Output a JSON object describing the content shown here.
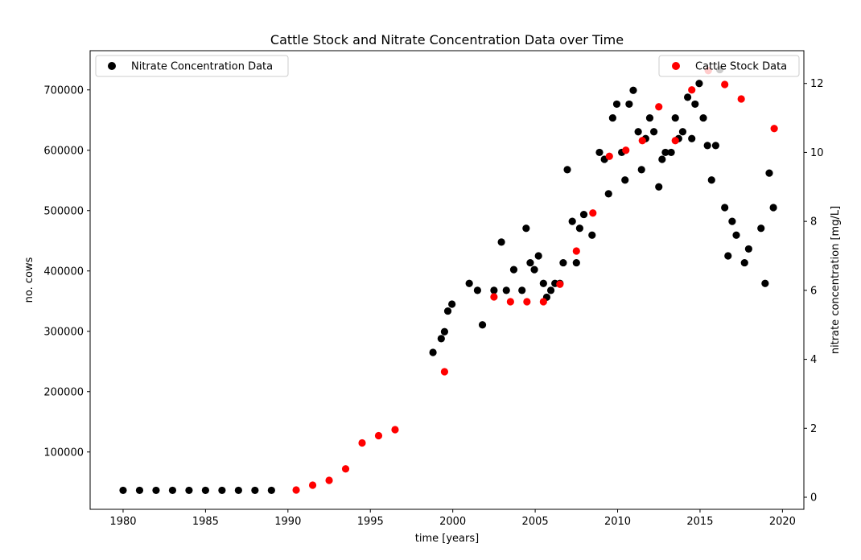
{
  "chart_data": {
    "type": "scatter",
    "title": "Cattle Stock and Nitrate Concentration Data over Time",
    "xlabel": "time [years]",
    "ylabel_left": "no. cows",
    "ylabel_right": "nitrate concentration [mg/L]",
    "xlim": [
      1978,
      2021.3
    ],
    "ylim_left": [
      5000,
      765000
    ],
    "ylim_right": [
      -0.35,
      12.95
    ],
    "x_ticks": [
      1980,
      1985,
      1990,
      1995,
      2000,
      2005,
      2010,
      2015,
      2020
    ],
    "y_left_ticks": [
      100000,
      200000,
      300000,
      400000,
      500000,
      600000,
      700000
    ],
    "y_right_ticks": [
      0,
      2,
      4,
      6,
      8,
      10,
      12
    ],
    "grid": false,
    "series": [
      {
        "name": "Cattle Stock Data",
        "color": "#ff0000",
        "axis": "left",
        "legend_position": "top-right",
        "x": [
          1990.5,
          1991.5,
          1992.5,
          1993.5,
          1994.5,
          1995.5,
          1996.5,
          1999.5,
          2002.5,
          2003.5,
          2004.5,
          2005.5,
          2006.5,
          2007.5,
          2008.5,
          2009.5,
          2010.5,
          2011.5,
          2012.5,
          2013.5,
          2014.5,
          2015.5,
          2016.5,
          2017.5,
          2019.5
        ],
        "y": [
          37000,
          45000,
          53000,
          72000,
          115000,
          127000,
          137000,
          233000,
          357000,
          349000,
          349000,
          349000,
          378000,
          433000,
          496000,
          590000,
          600000,
          616000,
          672000,
          616000,
          700000,
          732000,
          709000,
          685000,
          636000
        ]
      },
      {
        "name": "Nitrate Concentration Data",
        "color": "#000000",
        "axis": "right",
        "legend_position": "top-left",
        "x": [
          1980,
          1981,
          1982,
          1983,
          1984,
          1985,
          1986,
          1987,
          1988,
          1989,
          1998.8,
          1999.3,
          1999.5,
          1999.7,
          1999.95,
          2001,
          2001.5,
          2001.8,
          2002.5,
          2002.95,
          2003.25,
          2003.7,
          2004.2,
          2004.45,
          2004.7,
          2004.95,
          2005.2,
          2005.5,
          2005.7,
          2005.95,
          2006.2,
          2006.5,
          2006.7,
          2006.95,
          2007.25,
          2007.5,
          2007.7,
          2007.95,
          2008.45,
          2008.9,
          2009.2,
          2009.45,
          2009.7,
          2009.95,
          2010.25,
          2010.45,
          2010.7,
          2010.95,
          2011.25,
          2011.45,
          2011.7,
          2011.95,
          2012.2,
          2012.5,
          2012.7,
          2012.9,
          2013.25,
          2013.5,
          2013.7,
          2013.95,
          2014.25,
          2014.5,
          2014.7,
          2014.95,
          2015.2,
          2015.45,
          2015.7,
          2015.95,
          2016.2,
          2016.5,
          2016.7,
          2016.95,
          2017.2,
          2017.7,
          2017.95,
          2018.7,
          2018.95,
          2019.2,
          2019.45
        ],
        "y": [
          0.2,
          0.2,
          0.2,
          0.2,
          0.2,
          0.2,
          0.2,
          0.2,
          0.2,
          0.2,
          4.2,
          4.6,
          4.8,
          5.4,
          5.6,
          6.2,
          6.0,
          5.0,
          6.0,
          7.4,
          6.0,
          6.6,
          6.0,
          7.8,
          6.8,
          6.6,
          7.0,
          6.2,
          5.8,
          6.0,
          6.2,
          6.2,
          6.8,
          9.5,
          8.0,
          6.8,
          7.8,
          8.2,
          7.6,
          10.0,
          9.8,
          8.8,
          11.0,
          11.4,
          10.0,
          9.2,
          11.4,
          11.8,
          10.6,
          9.5,
          10.4,
          11.0,
          10.6,
          9.0,
          9.8,
          10.0,
          10.0,
          11.0,
          10.4,
          10.6,
          11.6,
          10.4,
          11.4,
          12.0,
          11.0,
          10.2,
          9.2,
          10.2,
          12.4,
          8.4,
          7.0,
          8.0,
          7.6,
          6.8,
          7.2,
          7.8,
          6.2,
          9.4,
          8.4
        ]
      }
    ]
  }
}
